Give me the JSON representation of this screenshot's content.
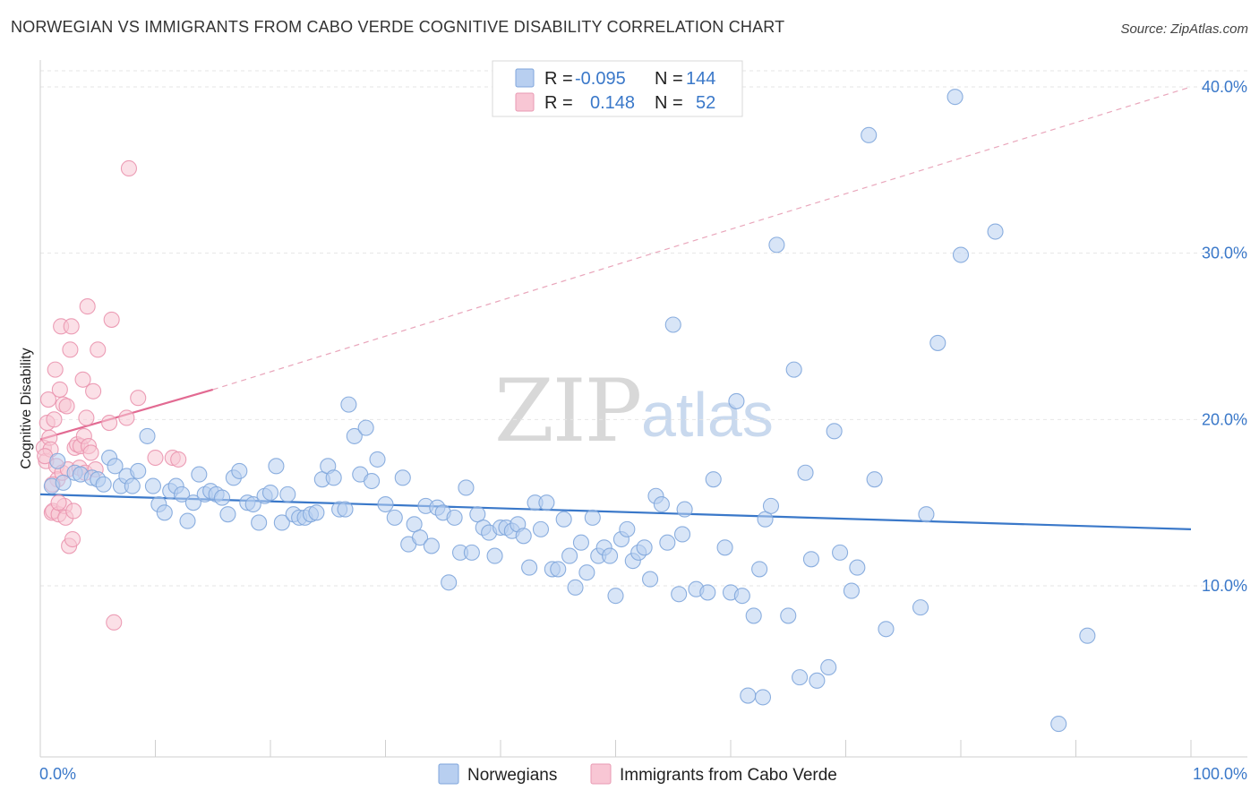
{
  "header": {
    "title": "NORWEGIAN VS IMMIGRANTS FROM CABO VERDE COGNITIVE DISABILITY CORRELATION CHART",
    "source": "Source: ZipAtlas.com"
  },
  "watermark": {
    "zip": "ZIP",
    "atlas": "atlas"
  },
  "legend": {
    "rows": [
      {
        "r_label": "R =",
        "r_value": "-0.095",
        "n_label": "N =",
        "n_value": "144",
        "color": "#a9c4ea"
      },
      {
        "r_label": "R =",
        "r_value": "0.148",
        "n_label": "N =",
        "n_value": "52",
        "color": "#f4b6c8"
      }
    ]
  },
  "bottom_legend": {
    "items": [
      {
        "label": "Norwegians",
        "color": "#a9c4ea"
      },
      {
        "label": "Immigrants from Cabo Verde",
        "color": "#f4b6c8"
      }
    ]
  },
  "chart_data": {
    "type": "scatter",
    "ylabel": "Cognitive Disability",
    "xlim": [
      0,
      100
    ],
    "ylim": [
      0,
      41.5
    ],
    "x_tick_labels": [
      "0.0%",
      "100.0%"
    ],
    "y_ticks": [
      10,
      20,
      30,
      40
    ],
    "y_tick_labels": [
      "10.0%",
      "20.0%",
      "30.0%",
      "40.0%"
    ],
    "grid": true,
    "series": [
      {
        "name": "Norwegians",
        "color": "#3a78c9",
        "fill": "#b8cff0",
        "trend": {
          "x": [
            0,
            100
          ],
          "y": [
            15.5,
            13.4
          ],
          "style": "solid"
        },
        "points": [
          [
            1.0,
            16.0
          ],
          [
            1.5,
            17.5
          ],
          [
            2.0,
            16.2
          ],
          [
            3.0,
            16.8
          ],
          [
            3.5,
            16.7
          ],
          [
            4.5,
            16.5
          ],
          [
            5.0,
            16.4
          ],
          [
            5.5,
            16.1
          ],
          [
            6.0,
            17.7
          ],
          [
            6.5,
            17.2
          ],
          [
            7.0,
            16.0
          ],
          [
            7.5,
            16.6
          ],
          [
            8.0,
            16.0
          ],
          [
            8.5,
            16.9
          ],
          [
            9.3,
            19.0
          ],
          [
            9.8,
            16.0
          ],
          [
            10.3,
            14.9
          ],
          [
            10.8,
            14.4
          ],
          [
            11.3,
            15.7
          ],
          [
            11.8,
            16.0
          ],
          [
            12.3,
            15.5
          ],
          [
            12.8,
            13.9
          ],
          [
            13.3,
            15.0
          ],
          [
            13.8,
            16.7
          ],
          [
            14.3,
            15.5
          ],
          [
            14.8,
            15.7
          ],
          [
            15.3,
            15.5
          ],
          [
            15.8,
            15.3
          ],
          [
            16.3,
            14.3
          ],
          [
            16.8,
            16.5
          ],
          [
            17.3,
            16.9
          ],
          [
            18.0,
            15.0
          ],
          [
            18.5,
            14.9
          ],
          [
            19.0,
            13.8
          ],
          [
            19.5,
            15.4
          ],
          [
            20.0,
            15.6
          ],
          [
            20.5,
            17.2
          ],
          [
            21.0,
            13.8
          ],
          [
            21.5,
            15.5
          ],
          [
            22.0,
            14.3
          ],
          [
            22.5,
            14.1
          ],
          [
            23.0,
            14.1
          ],
          [
            23.5,
            14.3
          ],
          [
            24.0,
            14.4
          ],
          [
            24.5,
            16.4
          ],
          [
            25.0,
            17.2
          ],
          [
            25.5,
            16.5
          ],
          [
            26.0,
            14.6
          ],
          [
            26.5,
            14.6
          ],
          [
            26.8,
            20.9
          ],
          [
            27.3,
            19.0
          ],
          [
            27.8,
            16.7
          ],
          [
            28.3,
            19.5
          ],
          [
            28.8,
            16.3
          ],
          [
            29.3,
            17.6
          ],
          [
            30.0,
            14.9
          ],
          [
            30.8,
            14.1
          ],
          [
            31.5,
            16.5
          ],
          [
            32.0,
            12.5
          ],
          [
            32.5,
            13.7
          ],
          [
            33.0,
            12.9
          ],
          [
            33.5,
            14.8
          ],
          [
            34.0,
            12.4
          ],
          [
            34.5,
            14.7
          ],
          [
            35.0,
            14.4
          ],
          [
            35.5,
            10.2
          ],
          [
            36.0,
            14.1
          ],
          [
            36.5,
            12.0
          ],
          [
            37.0,
            15.9
          ],
          [
            37.5,
            12.0
          ],
          [
            38.0,
            14.3
          ],
          [
            38.5,
            13.5
          ],
          [
            39.0,
            13.2
          ],
          [
            39.5,
            11.8
          ],
          [
            40.0,
            13.5
          ],
          [
            40.5,
            13.5
          ],
          [
            41.0,
            13.3
          ],
          [
            41.5,
            13.7
          ],
          [
            42.0,
            13.0
          ],
          [
            42.5,
            11.1
          ],
          [
            43.0,
            15.0
          ],
          [
            43.5,
            13.4
          ],
          [
            44.0,
            15.0
          ],
          [
            44.5,
            11.0
          ],
          [
            45.0,
            11.0
          ],
          [
            45.5,
            14.0
          ],
          [
            46.0,
            11.8
          ],
          [
            46.5,
            9.9
          ],
          [
            47.0,
            12.6
          ],
          [
            47.5,
            10.8
          ],
          [
            48.0,
            14.1
          ],
          [
            48.5,
            11.8
          ],
          [
            49.0,
            12.3
          ],
          [
            49.5,
            11.8
          ],
          [
            50.0,
            9.4
          ],
          [
            50.5,
            12.8
          ],
          [
            51.0,
            13.4
          ],
          [
            51.5,
            11.5
          ],
          [
            52.0,
            12.0
          ],
          [
            52.5,
            12.3
          ],
          [
            53.0,
            10.4
          ],
          [
            53.5,
            15.4
          ],
          [
            54.0,
            14.9
          ],
          [
            54.5,
            12.6
          ],
          [
            55.0,
            25.7
          ],
          [
            55.5,
            9.5
          ],
          [
            55.8,
            13.1
          ],
          [
            56.0,
            14.6
          ],
          [
            57.0,
            9.8
          ],
          [
            58.0,
            9.6
          ],
          [
            58.5,
            16.4
          ],
          [
            59.5,
            12.3
          ],
          [
            60.0,
            9.6
          ],
          [
            60.5,
            21.1
          ],
          [
            61.0,
            9.4
          ],
          [
            62.0,
            8.2
          ],
          [
            62.5,
            11.0
          ],
          [
            63.0,
            14.0
          ],
          [
            63.5,
            14.8
          ],
          [
            64.0,
            30.5
          ],
          [
            65.0,
            8.2
          ],
          [
            66.0,
            4.5
          ],
          [
            65.5,
            23.0
          ],
          [
            66.5,
            16.8
          ],
          [
            67.0,
            11.6
          ],
          [
            67.5,
            4.3
          ],
          [
            68.5,
            5.1
          ],
          [
            69.0,
            19.3
          ],
          [
            69.5,
            12.0
          ],
          [
            70.5,
            9.7
          ],
          [
            71.0,
            11.1
          ],
          [
            72.0,
            37.1
          ],
          [
            72.5,
            16.4
          ],
          [
            73.5,
            7.4
          ],
          [
            76.5,
            8.7
          ],
          [
            77.0,
            14.3
          ],
          [
            78.0,
            24.6
          ],
          [
            79.5,
            39.4
          ],
          [
            80.0,
            29.9
          ],
          [
            83.0,
            31.3
          ],
          [
            88.5,
            1.7
          ],
          [
            91.0,
            7.0
          ],
          [
            61.5,
            3.4
          ],
          [
            62.8,
            3.3
          ]
        ]
      },
      {
        "name": "Immigrants from Cabo Verde",
        "color": "#e26a92",
        "fill": "#f8c6d4",
        "trend": {
          "x": [
            0,
            15
          ],
          "y": [
            18.8,
            21.8
          ],
          "style": "solid",
          "extend_to": [
            100,
            40.0
          ]
        },
        "points": [
          [
            0.3,
            18.3
          ],
          [
            0.5,
            17.5
          ],
          [
            0.6,
            19.8
          ],
          [
            0.7,
            21.2
          ],
          [
            0.8,
            18.9
          ],
          [
            1.0,
            14.4
          ],
          [
            1.1,
            14.5
          ],
          [
            1.2,
            20.0
          ],
          [
            1.3,
            23.0
          ],
          [
            1.4,
            17.2
          ],
          [
            1.5,
            16.4
          ],
          [
            1.6,
            14.3
          ],
          [
            1.7,
            21.8
          ],
          [
            1.8,
            25.6
          ],
          [
            1.9,
            16.8
          ],
          [
            2.0,
            20.9
          ],
          [
            2.1,
            14.8
          ],
          [
            2.2,
            14.1
          ],
          [
            2.3,
            20.8
          ],
          [
            2.4,
            17.0
          ],
          [
            2.5,
            12.4
          ],
          [
            2.6,
            24.2
          ],
          [
            2.7,
            25.6
          ],
          [
            2.8,
            12.8
          ],
          [
            2.9,
            14.5
          ],
          [
            3.0,
            18.3
          ],
          [
            3.2,
            18.5
          ],
          [
            3.4,
            17.1
          ],
          [
            3.5,
            18.4
          ],
          [
            3.7,
            22.4
          ],
          [
            3.8,
            19.0
          ],
          [
            3.9,
            16.8
          ],
          [
            4.0,
            20.1
          ],
          [
            4.1,
            26.8
          ],
          [
            4.2,
            18.4
          ],
          [
            4.4,
            18.0
          ],
          [
            4.6,
            21.7
          ],
          [
            4.8,
            17.0
          ],
          [
            5.0,
            24.2
          ],
          [
            6.0,
            19.8
          ],
          [
            6.2,
            26.0
          ],
          [
            6.4,
            7.8
          ],
          [
            7.5,
            20.1
          ],
          [
            7.7,
            35.1
          ],
          [
            8.5,
            21.3
          ],
          [
            10.0,
            17.7
          ],
          [
            11.5,
            17.7
          ],
          [
            12.0,
            17.6
          ],
          [
            0.9,
            18.2
          ],
          [
            1.05,
            16.1
          ],
          [
            1.6,
            15.0
          ],
          [
            0.4,
            17.8
          ]
        ]
      }
    ]
  }
}
